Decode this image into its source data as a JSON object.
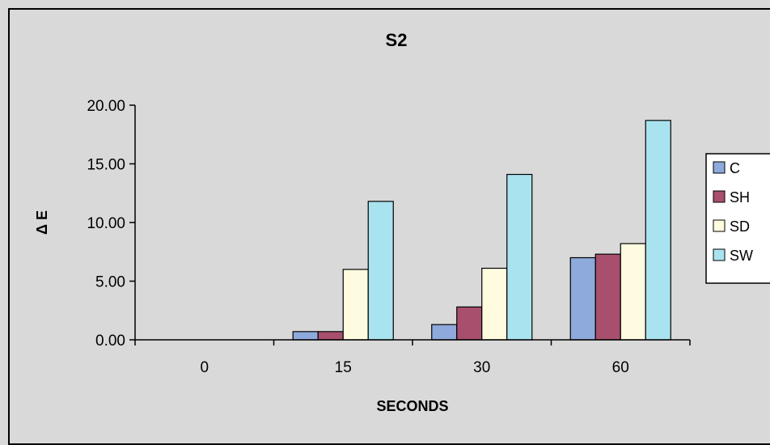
{
  "chart_data": {
    "type": "bar",
    "title": "S2",
    "xlabel": "SECONDS",
    "ylabel": "Δ E",
    "categories": [
      "0",
      "15",
      "30",
      "60"
    ],
    "yticks": [
      "0.00",
      "5.00",
      "10.00",
      "15.00",
      "20.00"
    ],
    "ylim": [
      0,
      20
    ],
    "legend_position": "right",
    "grid": false,
    "series": [
      {
        "name": "C",
        "color": "#8ea9db",
        "values": [
          0,
          0.7,
          1.3,
          7.0
        ]
      },
      {
        "name": "SH",
        "color": "#a94f6e",
        "values": [
          0,
          0.7,
          2.8,
          7.3
        ]
      },
      {
        "name": "SD",
        "color": "#fffbe0",
        "values": [
          0,
          6.0,
          6.1,
          8.2
        ]
      },
      {
        "name": "SW",
        "color": "#a9e3ef",
        "values": [
          0,
          11.8,
          14.1,
          18.7
        ]
      }
    ]
  }
}
